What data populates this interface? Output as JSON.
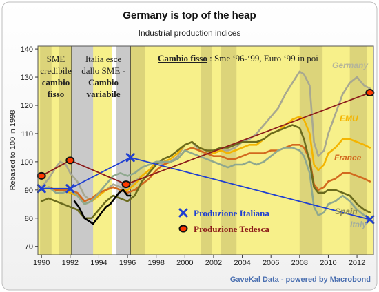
{
  "chart_data": {
    "type": "line",
    "title": "Germany is top of the heap",
    "subtitle": "Industrial production indices",
    "ylabel": "Rebased to 100 in 1998",
    "xlabel": "",
    "ylim": [
      67,
      141
    ],
    "xlim": [
      1989.75,
      2013.15
    ],
    "grid": false,
    "x_ticks": [
      "1990",
      "1992",
      "1994",
      "1996",
      "1998",
      "2000",
      "2002",
      "2004",
      "2006",
      "2008",
      "2010",
      "2012"
    ],
    "y_ticks": [
      "70",
      "80",
      "90",
      "100",
      "110",
      "120",
      "130",
      "140"
    ],
    "source": "GaveKal Data - powered by Macrobond",
    "annotations": {
      "period1": [
        "SME",
        "credibile",
        "cambio",
        "fisso"
      ],
      "period2": [
        "Italia esce",
        "dallo SME -",
        "Cambio",
        "variabile"
      ],
      "period3_bold": "Cambio fisso",
      "period3_rest": " : Sme ‘96-‘99, Euro ‘99 in poi"
    },
    "shaded_periods": [
      {
        "from": 1989.9,
        "to": 1990.7,
        "kind": "recession"
      },
      {
        "from": 1991.2,
        "to": 1992.1,
        "kind": "recession"
      },
      {
        "from": 1992.1,
        "to": 1993.6,
        "kind": "gray"
      },
      {
        "from": 1995.2,
        "to": 1996.2,
        "kind": "gray"
      },
      {
        "from": 1996.2,
        "to": 1997.2,
        "kind": "recession"
      },
      {
        "from": 2001.1,
        "to": 2001.9,
        "kind": "recession"
      },
      {
        "from": 2002.5,
        "to": 2003.6,
        "kind": "recession"
      },
      {
        "from": 2008.0,
        "to": 2009.6,
        "kind": "recession"
      },
      {
        "from": 2011.5,
        "to": 2012.7,
        "kind": "recession"
      }
    ],
    "series": [
      {
        "name": "Germany",
        "color": "#a8a890",
        "x": [
          1990,
          1990.5,
          1991,
          1991.3,
          1991.7,
          1992,
          1992.5,
          1993,
          1993.5,
          1994,
          1994.5,
          1995,
          1995.5,
          1996,
          1996.5,
          1997,
          1997.5,
          1998,
          1998.5,
          1999,
          1999.5,
          2000,
          2000.5,
          2001,
          2001.5,
          2002,
          2002.5,
          2003,
          2003.5,
          2004,
          2004.5,
          2005,
          2005.5,
          2006,
          2006.5,
          2007,
          2007.5,
          2008,
          2008.3,
          2008.7,
          2009,
          2009.3,
          2009.7,
          2010,
          2010.5,
          2011,
          2011.5,
          2012,
          2012.5,
          2012.9
        ],
        "values": [
          91,
          94,
          98,
          100,
          99,
          96,
          93,
          88,
          86,
          88,
          90,
          92,
          91,
          90,
          93,
          95,
          97,
          100,
          99,
          100,
          102,
          106,
          107,
          104,
          103,
          103,
          104,
          104,
          105,
          107,
          108,
          110,
          113,
          116,
          119,
          124,
          128,
          132,
          131,
          127,
          107,
          102,
          104,
          110,
          117,
          124,
          128,
          130,
          127,
          126
        ]
      },
      {
        "name": "EMU",
        "color": "#f4b400",
        "x": [
          1990,
          1990.5,
          1991,
          1991.5,
          1992,
          1992.5,
          1993,
          1993.5,
          1994,
          1994.5,
          1995,
          1995.5,
          1996,
          1996.5,
          1997,
          1997.5,
          1998,
          1998.5,
          1999,
          1999.5,
          2000,
          2000.5,
          2001,
          2001.5,
          2002,
          2002.5,
          2003,
          2003.5,
          2004,
          2004.5,
          2005,
          2005.5,
          2006,
          2006.5,
          2007,
          2007.5,
          2008,
          2008.3,
          2008.7,
          2009,
          2009.3,
          2009.7,
          2010,
          2010.5,
          2011,
          2011.5,
          2012,
          2012.5,
          2012.9
        ],
        "values": [
          90,
          91,
          90,
          90,
          89,
          88,
          85,
          86,
          88,
          90,
          91,
          90,
          90,
          92,
          95,
          97,
          100,
          100,
          101,
          103,
          106,
          107,
          105,
          104,
          103,
          104,
          103,
          104,
          105,
          106,
          106,
          108,
          110,
          111,
          113,
          115,
          116,
          115,
          110,
          99,
          97,
          99,
          103,
          105,
          108,
          108,
          107,
          106,
          105
        ]
      },
      {
        "name": "France",
        "color": "#d2691e",
        "x": [
          1990,
          1990.5,
          1991,
          1991.5,
          1992,
          1992.5,
          1993,
          1993.5,
          1994,
          1994.5,
          1995,
          1995.5,
          1996,
          1996.5,
          1997,
          1997.5,
          1998,
          1998.5,
          1999,
          1999.5,
          2000,
          2000.5,
          2001,
          2001.5,
          2002,
          2002.5,
          2003,
          2003.5,
          2004,
          2004.5,
          2005,
          2005.5,
          2006,
          2006.5,
          2007,
          2007.5,
          2008,
          2008.3,
          2008.7,
          2009,
          2009.3,
          2009.7,
          2010,
          2010.5,
          2011,
          2011.5,
          2012,
          2012.5,
          2012.9
        ],
        "values": [
          90,
          91,
          90,
          90,
          90,
          89,
          86,
          87,
          89,
          90,
          91,
          90,
          89,
          90,
          92,
          94,
          97,
          99,
          100,
          101,
          104,
          105,
          104,
          103,
          102,
          102,
          101,
          101,
          102,
          103,
          103,
          103,
          104,
          104,
          105,
          106,
          106,
          105,
          101,
          92,
          90,
          91,
          93,
          94,
          96,
          96,
          95,
          94,
          93
        ]
      },
      {
        "name": "Spain",
        "color": "#6b6b1e",
        "x": [
          1990,
          1990.5,
          1991,
          1991.5,
          1992,
          1992.5,
          1993,
          1993.5,
          1994,
          1994.5,
          1995,
          1995.5,
          1996,
          1996.5,
          1997,
          1997.5,
          1998,
          1998.5,
          1999,
          1999.5,
          2000,
          2000.5,
          2001,
          2001.5,
          2002,
          2002.5,
          2003,
          2003.5,
          2004,
          2004.5,
          2005,
          2005.5,
          2006,
          2006.5,
          2007,
          2007.5,
          2008,
          2008.3,
          2008.7,
          2009,
          2009.3,
          2009.7,
          2010,
          2010.5,
          2011,
          2011.5,
          2012,
          2012.5,
          2012.9
        ],
        "values": [
          86,
          87,
          86,
          85,
          84,
          83,
          80,
          80,
          83,
          86,
          88,
          87,
          86,
          88,
          93,
          96,
          99,
          101,
          102,
          104,
          106,
          107,
          105,
          104,
          104,
          105,
          105,
          106,
          107,
          107,
          107,
          108,
          110,
          111,
          112,
          113,
          112,
          108,
          100,
          91,
          89,
          89,
          90,
          90,
          89,
          88,
          85,
          83,
          82
        ]
      },
      {
        "name": "Italy",
        "color": "#8fa88f",
        "x": [
          1990,
          1990.5,
          1991,
          1991.5,
          1992,
          1992.5,
          1993,
          1993.5,
          1994,
          1994.5,
          1995,
          1995.5,
          1996,
          1996.5,
          1997,
          1997.5,
          1998,
          1998.5,
          1999,
          1999.5,
          2000,
          2000.5,
          2001,
          2001.5,
          2002,
          2002.5,
          2003,
          2003.5,
          2004,
          2004.5,
          2005,
          2005.5,
          2006,
          2006.5,
          2007,
          2007.5,
          2008,
          2008.3,
          2008.7,
          2009,
          2009.3,
          2009.7,
          2010,
          2010.5,
          2011,
          2011.5,
          2012,
          2012.5,
          2012.9
        ],
        "values": [
          90,
          91,
          89,
          89,
          90,
          88,
          85,
          86,
          89,
          92,
          95,
          96,
          95,
          96,
          98,
          99,
          100,
          100,
          100,
          101,
          104,
          103,
          102,
          101,
          100,
          99,
          98,
          99,
          99,
          100,
          99,
          100,
          102,
          104,
          105,
          105,
          104,
          102,
          96,
          84,
          81,
          82,
          85,
          86,
          88,
          86,
          83,
          81,
          80
        ]
      },
      {
        "name": "Black",
        "color": "#000000",
        "x": [
          1992.3,
          1992.6,
          1993,
          1993.3,
          1993.6,
          1993.9,
          1994.2,
          1994.5,
          1994.8,
          1995.1,
          1995.4,
          1995.7,
          1996.0,
          1996.2
        ],
        "values": [
          86,
          84,
          80,
          79,
          78,
          80,
          82,
          84,
          85,
          87,
          89,
          90,
          88,
          88
        ]
      }
    ],
    "overlay": [
      {
        "name": "Produzione Italiana",
        "color": "#1f3fd1",
        "x": [
          1990,
          1992,
          1996.2,
          2012.9
        ],
        "values": [
          90.5,
          90.5,
          101.5,
          79.5
        ]
      },
      {
        "name": "Produzione Tedesca",
        "color": "#8b1a1a",
        "x": [
          1990,
          1992,
          1995.9,
          2012.9
        ],
        "values": [
          95,
          100.5,
          92,
          124.5
        ]
      }
    ],
    "inline_labels": [
      "Germany",
      "EMU",
      "France",
      "Spain",
      "Italy"
    ],
    "legend": [
      "Produzione Italiana",
      "Produzione Tedesca"
    ]
  }
}
